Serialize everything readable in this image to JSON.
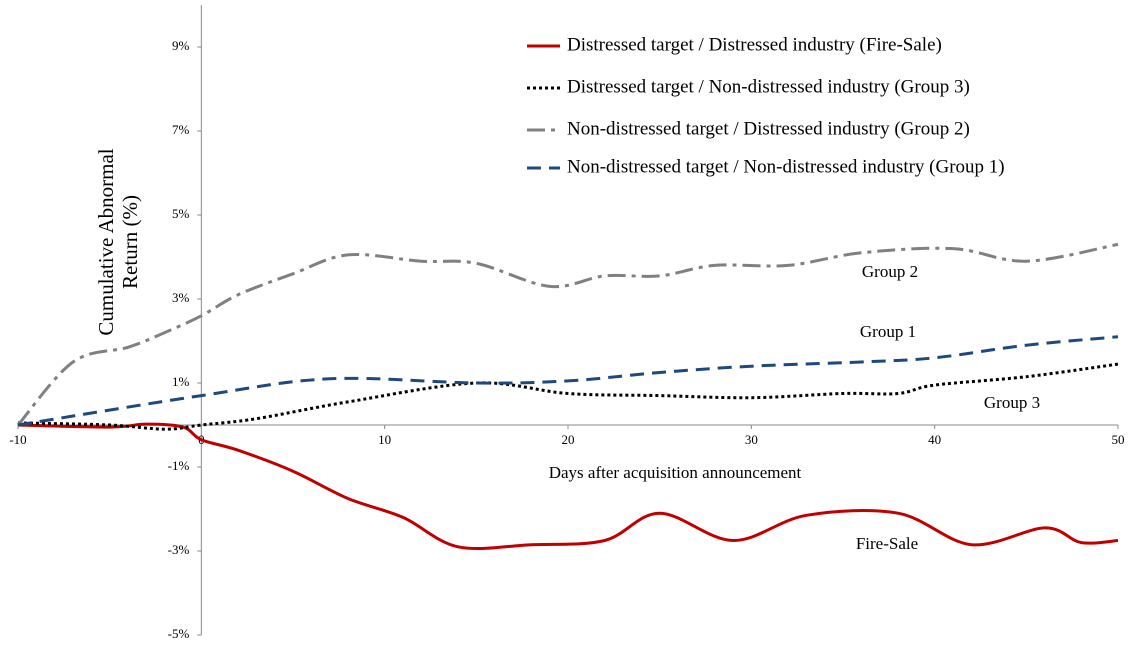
{
  "chart_data": {
    "type": "line",
    "x_label": "Days after acquisition announcement",
    "y_label": "Cumulative Abnormal Return (%)",
    "xlim": [
      -10,
      50
    ],
    "xticks": [
      -10,
      0,
      10,
      20,
      30,
      40,
      50
    ],
    "ylim": [
      -5,
      10
    ],
    "yticks": [
      {
        "value": 9,
        "label": "9%"
      },
      {
        "value": 7,
        "label": "7%"
      },
      {
        "value": 5,
        "label": "5%"
      },
      {
        "value": 3,
        "label": "3%"
      },
      {
        "value": 1,
        "label": "1%"
      },
      {
        "value": -1,
        "label": "-1%"
      },
      {
        "value": -3,
        "label": "-3%"
      },
      {
        "value": -5,
        "label": "-5%"
      }
    ],
    "legend": "upper right",
    "series": [
      {
        "name": "Distressed target / Distressed industry (Fire-Sale)",
        "color": "#c00000",
        "style": "solid",
        "x": [
          -10,
          -5,
          -3,
          -1,
          0,
          2,
          5,
          8,
          11,
          14,
          18,
          22,
          25,
          29,
          33,
          38,
          42,
          46,
          48,
          50
        ],
        "values": [
          0,
          -0.05,
          0.02,
          -0.05,
          -0.35,
          -0.6,
          -1.1,
          -1.75,
          -2.2,
          -2.9,
          -2.85,
          -2.75,
          -2.1,
          -2.75,
          -2.15,
          -2.1,
          -2.85,
          -2.45,
          -2.8,
          -2.75
        ]
      },
      {
        "name": "Distressed target / Non-distressed industry (Group 3)",
        "color": "#000000",
        "style": "dotted",
        "x": [
          -10,
          -5,
          -2,
          0,
          3,
          8,
          15,
          20,
          25,
          30,
          35,
          38,
          40,
          45,
          50
        ],
        "values": [
          0.05,
          0,
          -0.1,
          0,
          0.15,
          0.55,
          1.0,
          0.75,
          0.7,
          0.65,
          0.75,
          0.75,
          0.95,
          1.15,
          1.45
        ]
      },
      {
        "name": "Non-distressed target / Distressed industry (Group 2)",
        "color": "#808080",
        "style": "dashdot",
        "x": [
          -10,
          -7,
          -4,
          -2,
          0,
          2,
          5,
          8,
          12,
          15,
          19,
          22,
          25,
          28,
          32,
          36,
          41,
          45,
          50
        ],
        "values": [
          0,
          1.5,
          1.85,
          2.2,
          2.6,
          3.1,
          3.6,
          4.05,
          3.9,
          3.85,
          3.3,
          3.55,
          3.55,
          3.8,
          3.8,
          4.1,
          4.2,
          3.9,
          4.3
        ]
      },
      {
        "name": "Non-distressed target / Non-distressed industry (Group 1)",
        "color": "#1f497d",
        "style": "dashed",
        "x": [
          -10,
          0,
          7,
          15,
          20,
          25,
          30,
          36,
          40,
          45,
          50
        ],
        "values": [
          0,
          0.7,
          1.1,
          1.0,
          1.05,
          1.25,
          1.4,
          1.5,
          1.6,
          1.9,
          2.1
        ]
      }
    ],
    "annotations": [
      "Group 2",
      "Group 1",
      "Group 3",
      "Fire-Sale"
    ]
  }
}
